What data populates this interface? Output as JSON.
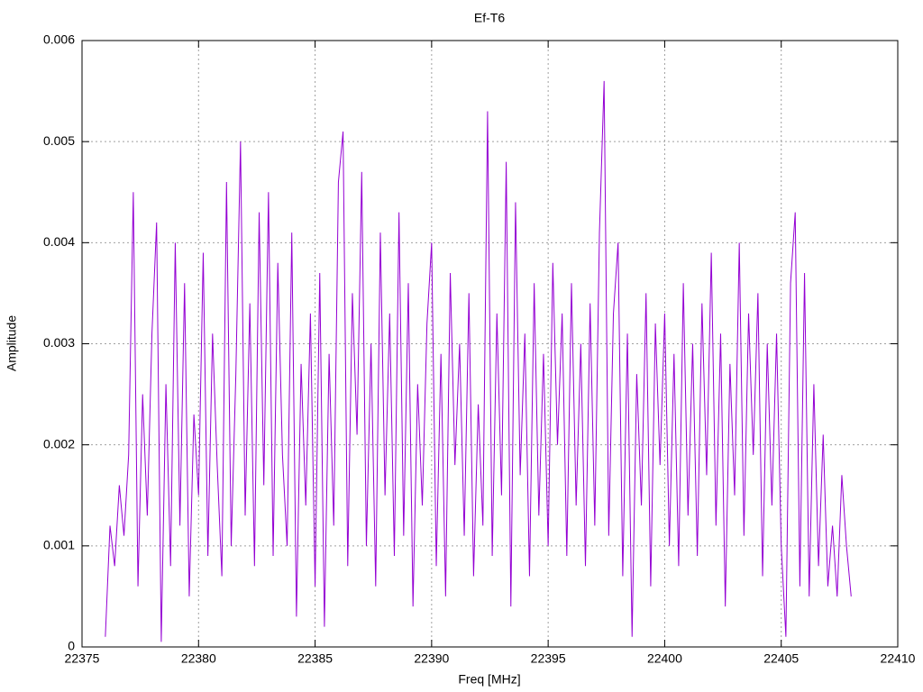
{
  "chart_data": {
    "type": "line",
    "title": "Ef-T6",
    "x_label": "Freq [MHz]",
    "y_label": "Amplitude",
    "color": "#9400d3",
    "grid": true,
    "xlim": [
      22375,
      22410
    ],
    "xticks": [
      22375,
      22380,
      22385,
      22390,
      22395,
      22400,
      22405,
      22410
    ],
    "ylim": [
      0,
      0.006
    ],
    "yticks": [
      0,
      0.001,
      0.002,
      0.003,
      0.004,
      0.005,
      0.006
    ],
    "x": [
      22376.0,
      22376.2,
      22376.4,
      22376.6,
      22376.8,
      22377.0,
      22377.2,
      22377.4,
      22377.6,
      22377.8,
      22378.0,
      22378.2,
      22378.4,
      22378.6,
      22378.8,
      22379.0,
      22379.2,
      22379.4,
      22379.6,
      22379.8,
      22380.0,
      22380.2,
      22380.4,
      22380.6,
      22380.8,
      22381.0,
      22381.2,
      22381.4,
      22381.6,
      22381.8,
      22382.0,
      22382.2,
      22382.4,
      22382.6,
      22382.8,
      22383.0,
      22383.2,
      22383.4,
      22383.6,
      22383.8,
      22384.0,
      22384.2,
      22384.4,
      22384.6,
      22384.8,
      22385.0,
      22385.2,
      22385.4,
      22385.6,
      22385.8,
      22386.0,
      22386.2,
      22386.4,
      22386.6,
      22386.8,
      22387.0,
      22387.2,
      22387.4,
      22387.6,
      22387.8,
      22388.0,
      22388.2,
      22388.4,
      22388.6,
      22388.8,
      22389.0,
      22389.2,
      22389.4,
      22389.6,
      22389.8,
      22390.0,
      22390.2,
      22390.4,
      22390.6,
      22390.8,
      22391.0,
      22391.2,
      22391.4,
      22391.6,
      22391.8,
      22392.0,
      22392.2,
      22392.4,
      22392.6,
      22392.8,
      22393.0,
      22393.2,
      22393.4,
      22393.6,
      22393.8,
      22394.0,
      22394.2,
      22394.4,
      22394.6,
      22394.8,
      22395.0,
      22395.2,
      22395.4,
      22395.6,
      22395.8,
      22396.0,
      22396.2,
      22396.4,
      22396.6,
      22396.8,
      22397.0,
      22397.2,
      22397.4,
      22397.6,
      22397.8,
      22398.0,
      22398.2,
      22398.4,
      22398.6,
      22398.8,
      22399.0,
      22399.2,
      22399.4,
      22399.6,
      22399.8,
      22400.0,
      22400.2,
      22400.4,
      22400.6,
      22400.8,
      22401.0,
      22401.2,
      22401.4,
      22401.6,
      22401.8,
      22402.0,
      22402.2,
      22402.4,
      22402.6,
      22402.8,
      22403.0,
      22403.2,
      22403.4,
      22403.6,
      22403.8,
      22404.0,
      22404.2,
      22404.4,
      22404.6,
      22404.8,
      22405.0,
      22405.2,
      22405.4,
      22405.6,
      22405.8,
      22406.0,
      22406.2,
      22406.4,
      22406.6,
      22406.8,
      22407.0,
      22407.2,
      22407.4,
      22407.6,
      22407.8,
      22408.0
    ],
    "values": [
      0.0001,
      0.0012,
      0.0008,
      0.0016,
      0.0011,
      0.0019,
      0.0045,
      0.0006,
      0.0025,
      0.0013,
      0.0031,
      0.0042,
      5e-05,
      0.0026,
      0.0008,
      0.004,
      0.0012,
      0.0036,
      0.0005,
      0.0023,
      0.0015,
      0.0039,
      0.0009,
      0.0031,
      0.0018,
      0.0007,
      0.0046,
      0.001,
      0.0027,
      0.005,
      0.0013,
      0.0034,
      0.0008,
      0.0043,
      0.0016,
      0.0045,
      0.0009,
      0.0038,
      0.0019,
      0.001,
      0.0041,
      0.0003,
      0.0028,
      0.0014,
      0.0033,
      0.0006,
      0.0037,
      0.0002,
      0.0029,
      0.0012,
      0.0046,
      0.0051,
      0.0008,
      0.0035,
      0.0021,
      0.0047,
      0.001,
      0.003,
      0.0006,
      0.0041,
      0.0015,
      0.0033,
      0.0009,
      0.0043,
      0.0011,
      0.0036,
      0.0004,
      0.0026,
      0.0014,
      0.0032,
      0.004,
      0.0008,
      0.0029,
      0.0005,
      0.0037,
      0.0018,
      0.003,
      0.0011,
      0.0035,
      0.0007,
      0.0024,
      0.0012,
      0.0053,
      0.0009,
      0.0033,
      0.0015,
      0.0048,
      0.0004,
      0.0044,
      0.0017,
      0.0031,
      0.0007,
      0.0036,
      0.0013,
      0.0029,
      0.001,
      0.0038,
      0.002,
      0.0033,
      0.0009,
      0.0036,
      0.0014,
      0.003,
      0.0008,
      0.0034,
      0.0012,
      0.0041,
      0.0056,
      0.0011,
      0.0033,
      0.004,
      0.0007,
      0.0031,
      0.0001,
      0.0027,
      0.0014,
      0.0035,
      0.0006,
      0.0032,
      0.0018,
      0.0033,
      0.001,
      0.0029,
      0.0008,
      0.0036,
      0.0013,
      0.003,
      0.0009,
      0.0034,
      0.0017,
      0.0039,
      0.0012,
      0.0031,
      0.0004,
      0.0028,
      0.0015,
      0.004,
      0.0011,
      0.0033,
      0.0019,
      0.0035,
      0.0007,
      0.003,
      0.0014,
      0.0031,
      0.001,
      0.0001,
      0.0036,
      0.0043,
      0.0006,
      0.0037,
      0.0005,
      0.0026,
      0.0008,
      0.0021,
      0.0006,
      0.0012,
      0.0005,
      0.0017,
      0.001,
      0.0005
    ]
  }
}
